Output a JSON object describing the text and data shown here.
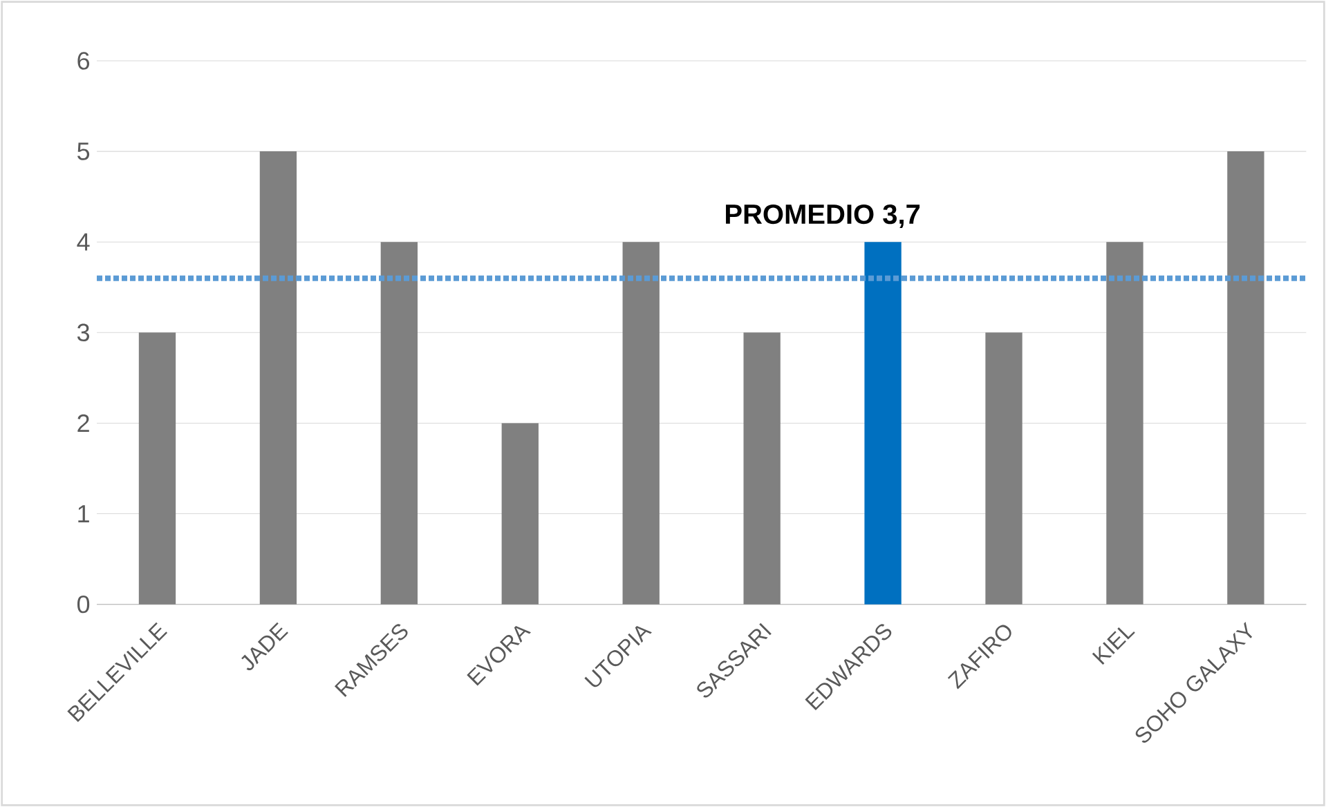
{
  "chart_data": {
    "type": "bar",
    "categories": [
      "BELLEVILLE",
      "JADE",
      "RAMSES",
      "EVORA",
      "UTOPIA",
      "SASSARI",
      "EDWARDS",
      "ZAFIRO",
      "KIEL",
      "SOHO GALAXY"
    ],
    "values": [
      3,
      5,
      4,
      2,
      4,
      3,
      4,
      3,
      4,
      5
    ],
    "colors": [
      "#808080",
      "#808080",
      "#808080",
      "#808080",
      "#808080",
      "#808080",
      "#0070c0",
      "#808080",
      "#808080",
      "#808080"
    ],
    "ylim": [
      0,
      6
    ],
    "yticks": [
      0,
      1,
      2,
      3,
      4,
      5,
      6
    ],
    "grid": "y",
    "ref_lines": [
      {
        "axis": "y",
        "value": 3.6,
        "label": "PROMEDIO 3,7",
        "color": "#5b9bd5",
        "line_style": "dotted"
      }
    ]
  }
}
